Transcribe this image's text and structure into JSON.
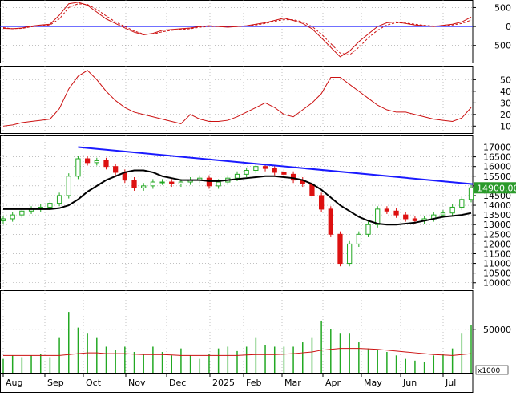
{
  "colors": {
    "up": "#22a822",
    "down": "#dd1111",
    "ma": "#000000",
    "trend": "#1a1aff",
    "osc": "#cc1111",
    "grid": "#9a9a9a",
    "price_tag_bg": "#2a9a2a"
  },
  "chart_data": [
    {
      "name": "oscillator",
      "type": "line",
      "ylim": [
        -950,
        700
      ],
      "ticks": [
        "500",
        "0",
        "-500"
      ],
      "tick_values": [
        500,
        0,
        -500
      ],
      "zero_line": true,
      "series": [
        {
          "style": "solid",
          "values": [
            -50,
            -60,
            -40,
            10,
            40,
            60,
            300,
            600,
            640,
            560,
            380,
            200,
            80,
            -40,
            -150,
            -220,
            -180,
            -100,
            -80,
            -60,
            -40,
            0,
            20,
            0,
            -20,
            0,
            20,
            60,
            100,
            160,
            220,
            160,
            80,
            -60,
            -300,
            -550,
            -800,
            -650,
            -400,
            -200,
            0,
            100,
            120,
            80,
            40,
            20,
            0,
            30,
            60,
            120,
            250
          ]
        },
        {
          "style": "dashed",
          "values": [
            -30,
            -60,
            -50,
            -10,
            20,
            40,
            200,
            500,
            600,
            580,
            450,
            280,
            120,
            0,
            -120,
            -200,
            -200,
            -140,
            -100,
            -80,
            -60,
            -20,
            0,
            0,
            -10,
            0,
            10,
            40,
            80,
            140,
            180,
            180,
            120,
            0,
            -200,
            -450,
            -700,
            -750,
            -550,
            -300,
            -100,
            40,
            100,
            90,
            60,
            30,
            10,
            20,
            40,
            80,
            170
          ]
        }
      ]
    },
    {
      "name": "indicator",
      "type": "line",
      "ylim": [
        4,
        62
      ],
      "ticks": [
        "50",
        "40",
        "30",
        "20",
        "10"
      ],
      "tick_values": [
        50,
        40,
        30,
        20,
        10
      ],
      "series": [
        {
          "style": "solid",
          "values": [
            10,
            11,
            13,
            14,
            15,
            16,
            25,
            42,
            53,
            58,
            50,
            40,
            32,
            26,
            22,
            20,
            18,
            16,
            14,
            12,
            20,
            16,
            14,
            14,
            15,
            18,
            22,
            26,
            30,
            26,
            20,
            18,
            24,
            30,
            38,
            52,
            52,
            46,
            40,
            34,
            28,
            24,
            22,
            22,
            20,
            18,
            16,
            15,
            14,
            17,
            26
          ]
        }
      ]
    },
    {
      "name": "price",
      "type": "candlestick",
      "ylim": [
        9700,
        17600
      ],
      "ticks": [
        "17000",
        "16500",
        "16000",
        "15500",
        "15000",
        "14500",
        "14000",
        "13500",
        "13000",
        "12500",
        "12000",
        "11500",
        "11000",
        "10500",
        "10000"
      ],
      "tick_values": [
        17000,
        16500,
        16000,
        15500,
        15000,
        14500,
        14000,
        13500,
        13000,
        12500,
        12000,
        11500,
        11000,
        10500,
        10000
      ],
      "last_price_label": "14900.00",
      "last_price": 14900,
      "close": [
        13300,
        13500,
        13700,
        13800,
        13900,
        14100,
        14500,
        15500,
        16400,
        16200,
        16300,
        16000,
        15700,
        15300,
        14900,
        15000,
        15200,
        15200,
        15100,
        15200,
        15300,
        15400,
        15000,
        15200,
        15400,
        15600,
        15800,
        16000,
        15900,
        15700,
        15600,
        15300,
        15100,
        14500,
        13800,
        12500,
        11000,
        12000,
        12500,
        13000,
        13800,
        13700,
        13500,
        13300,
        13200,
        13300,
        13500,
        13600,
        13900,
        14300,
        14900
      ],
      "ma": [
        13800,
        13800,
        13800,
        13800,
        13800,
        13800,
        13850,
        14000,
        14300,
        14700,
        15000,
        15300,
        15500,
        15700,
        15800,
        15800,
        15700,
        15500,
        15400,
        15300,
        15300,
        15300,
        15250,
        15250,
        15300,
        15350,
        15400,
        15450,
        15500,
        15500,
        15450,
        15400,
        15300,
        15100,
        14800,
        14400,
        14000,
        13700,
        13400,
        13200,
        13050,
        13000,
        13000,
        13050,
        13100,
        13200,
        13300,
        13400,
        13450,
        13500,
        13600
      ],
      "trendline": {
        "from": [
          8,
          17000
        ],
        "to": [
          50,
          15100
        ]
      }
    },
    {
      "name": "volume",
      "type": "bar",
      "unit_label": "x1000",
      "ylim": [
        0,
        95000
      ],
      "ticks": [
        "50000"
      ],
      "tick_values": [
        50000
      ],
      "values": [
        16000,
        20000,
        18000,
        20000,
        22000,
        18000,
        40000,
        70000,
        52000,
        45000,
        40000,
        30000,
        26000,
        30000,
        24000,
        22000,
        30000,
        24000,
        20000,
        28000,
        20000,
        16000,
        22000,
        28000,
        30000,
        25000,
        30000,
        40000,
        32000,
        30000,
        30000,
        30000,
        35000,
        40000,
        60000,
        50000,
        45000,
        45000,
        35000,
        28000,
        26000,
        24000,
        20000,
        16000,
        14000,
        12000,
        20000,
        22000,
        28000,
        45000,
        55000
      ],
      "ma": [
        20000,
        20000,
        20000,
        20000,
        20000,
        20000,
        20000,
        21000,
        22000,
        23000,
        23000,
        22000,
        22000,
        22000,
        21500,
        21000,
        21000,
        21000,
        20500,
        20000,
        20000,
        20000,
        20000,
        20000,
        20000,
        20000,
        20500,
        21000,
        21000,
        21000,
        21500,
        22000,
        23000,
        24000,
        26000,
        27000,
        28000,
        28000,
        28000,
        27500,
        27000,
        26000,
        25000,
        24000,
        23000,
        22000,
        21000,
        20500,
        20000,
        21000,
        22000
      ]
    }
  ],
  "x_axis": {
    "labels": [
      "Aug",
      "Sep",
      "Oct",
      "Nov",
      "Dec",
      "2025",
      "Feb",
      "Mar",
      "Apr",
      "May",
      "Jun",
      "Jul"
    ]
  }
}
